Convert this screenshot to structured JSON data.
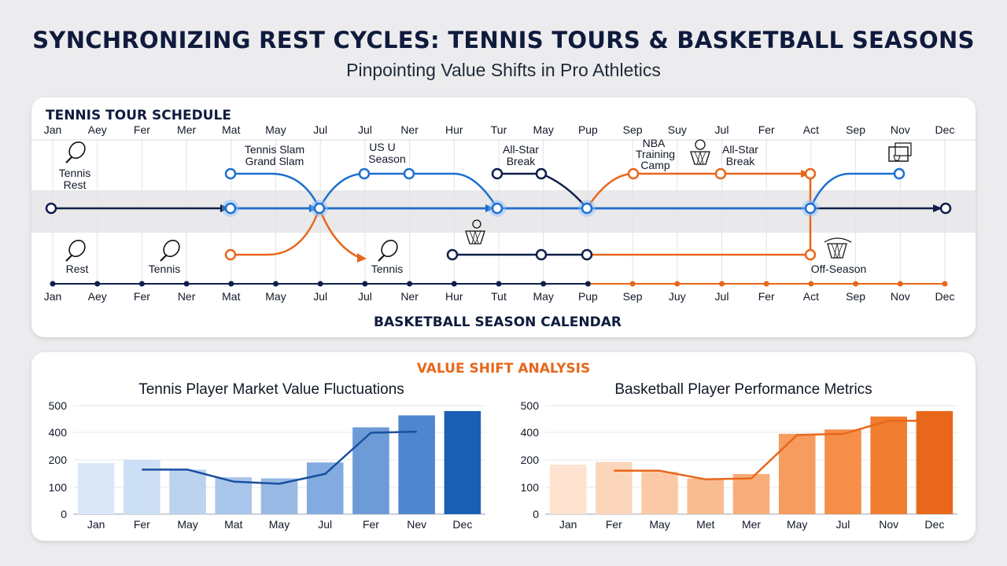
{
  "header": {
    "title": "SYNCHRONIZING REST CYCLES: TENNIS TOURS & BASKETBALL SEASONS",
    "subtitle": "Pinpointing Value Shifts in Pro Athletics"
  },
  "timeline": {
    "tennis_heading": "TENNIS TOUR SCHEDULE",
    "basketball_heading": "BASKETBALL SEASON CALENDAR",
    "top_months": [
      "Jan",
      "Aey",
      "Fer",
      "Mer",
      "Mat",
      "May",
      "Jul",
      "Jul",
      "Ner",
      "Hur",
      "Tur",
      "May",
      "Pup",
      "Sep",
      "Suy",
      "Jul",
      "Fer",
      "Act",
      "Sep",
      "Nov",
      "Dec"
    ],
    "bottom_months": [
      "Jan",
      "Aey",
      "Fer",
      "Ner",
      "Mat",
      "May",
      "Jul",
      "Jul",
      "Ner",
      "Hur",
      "Tut",
      "May",
      "Pup",
      "Sep",
      "Juy",
      "Jul",
      "Fer",
      "Act",
      "Sep",
      "Nov",
      "Dec"
    ],
    "labels": {
      "tennis_rest": "Tennis Rest",
      "tennis_slam": "Tennis Slam Grand Slam",
      "us_season": "US U Season",
      "allstar_1": "All-Star Break",
      "nba_camp": "NBA Training Camp",
      "allstar_2": "All-Star Break",
      "rest": "Rest",
      "tennis_1": "Tennis",
      "tennis_2": "Tennis",
      "off_season": "Off-Season"
    },
    "colors": {
      "navy": "#0f1e4a",
      "blue": "#1e6fd0",
      "orange": "#e8671b"
    }
  },
  "value_section": {
    "heading": "VALUE SHIFT ANALYSIS"
  },
  "chart_data": [
    {
      "type": "bar",
      "title": "Tennis Player Market Value Fluctuations",
      "categories": [
        "Jan",
        "Fer",
        "May",
        "Mat",
        "May",
        "Jul",
        "Fer",
        "Nev",
        "Dec"
      ],
      "values": [
        235,
        250,
        205,
        170,
        165,
        238,
        400,
        455,
        475
      ],
      "line_values": [
        null,
        205,
        205,
        150,
        140,
        185,
        375,
        380,
        null
      ],
      "y_ticks": [
        0,
        100,
        200,
        400,
        500
      ],
      "colors": [
        "#dce8f7",
        "#cddff4",
        "#bcd3ef",
        "#a9c6ea",
        "#97b9e4",
        "#83abdf",
        "#6c9bd8",
        "#4f86cd",
        "#1a5fb4"
      ],
      "line_color": "#1a4fa0"
    },
    {
      "type": "bar",
      "title": "Basketball Player Performance Metrics",
      "categories": [
        "Jan",
        "Fer",
        "May",
        "Met",
        "Mer",
        "May",
        "Jul",
        "Nov",
        "Dec"
      ],
      "values": [
        228,
        240,
        195,
        165,
        185,
        370,
        390,
        450,
        475
      ],
      "line_values": [
        null,
        200,
        200,
        160,
        165,
        365,
        370,
        430,
        430
      ],
      "y_ticks": [
        0,
        100,
        200,
        400,
        500
      ],
      "colors": [
        "#fde3d0",
        "#fcd6bb",
        "#fbc9a6",
        "#f9bb90",
        "#f8ad7a",
        "#f69c5f",
        "#f48e49",
        "#f07e30",
        "#e8671b"
      ],
      "line_color": "#e8671b"
    }
  ]
}
